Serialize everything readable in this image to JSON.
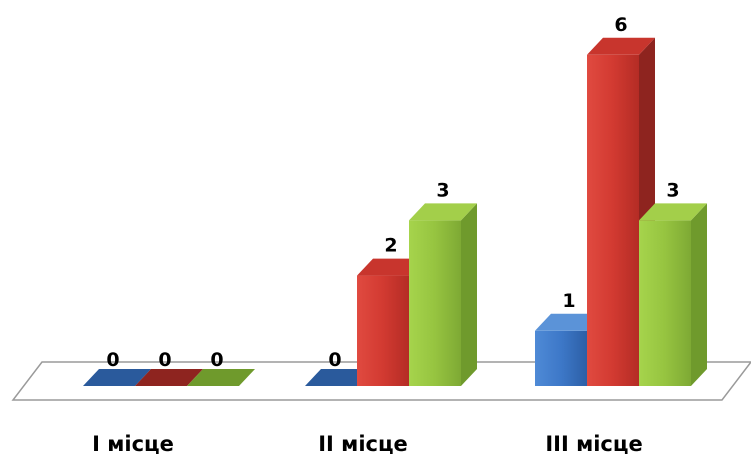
{
  "chart_data": {
    "type": "bar",
    "categories": [
      "I місце",
      "II місце",
      "III місце"
    ],
    "series": [
      {
        "values": [
          0,
          0,
          1
        ],
        "color": "#3a74c0"
      },
      {
        "values": [
          0,
          2,
          6
        ],
        "color": "#d03a32"
      },
      {
        "values": [
          0,
          3,
          3
        ],
        "color": "#92c13d"
      }
    ],
    "ylim": [
      0,
      6
    ],
    "grid": false,
    "legend": "none",
    "three_d": true
  }
}
